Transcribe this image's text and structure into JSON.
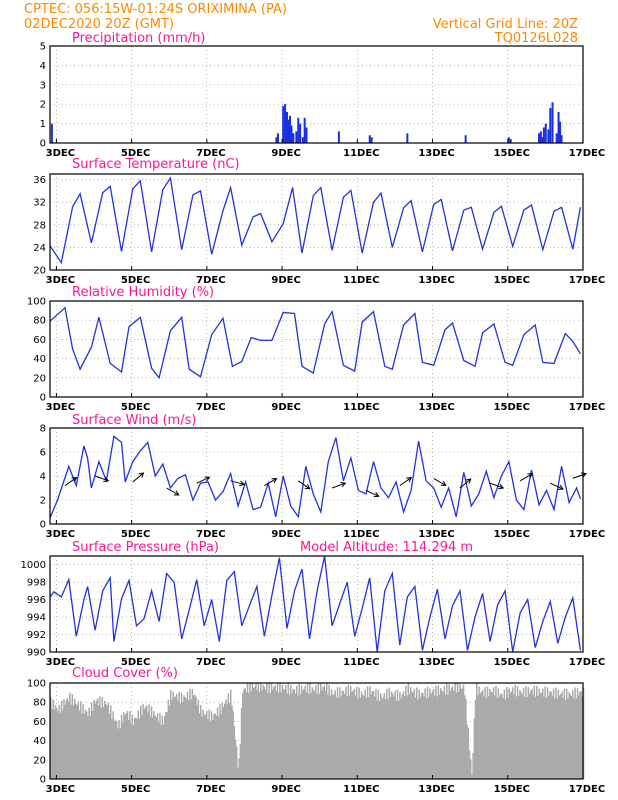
{
  "header": {
    "line1": "CPTEC:   056:15W-01:24S   ORIXIMINA (PA)",
    "line2": "02DEC2020 20Z (GMT)",
    "right1": "Vertical Grid Line: 20Z",
    "right2": "TQ0126L028"
  },
  "colors": {
    "header": "#ff8800",
    "title": "#ff1493",
    "line": "#2233dd",
    "bar": "#1a2fe0",
    "cloud": "#aaaaaa",
    "grid": "#888888"
  },
  "x_tick_labels": [
    "3DEC",
    "5DEC",
    "7DEC",
    "9DEC",
    "11DEC",
    "13DEC",
    "15DEC",
    "17DEC"
  ],
  "chart_data": [
    {
      "type": "bar",
      "title": "Precipitation (mm/h)",
      "ylim": [
        0,
        5
      ],
      "yticks": [
        0,
        1,
        2,
        3,
        4,
        5
      ],
      "x_unit": "days since 02DEC2020 20Z",
      "x": [
        0.05,
        6.02,
        6.06,
        6.2,
        6.25,
        6.3,
        6.35,
        6.38,
        6.42,
        6.47,
        6.55,
        6.6,
        6.65,
        6.72,
        6.77,
        6.82,
        7.68,
        8.5,
        8.55,
        9.5,
        11.05,
        12.2,
        12.25,
        13.0,
        13.05,
        13.08,
        13.13,
        13.18,
        13.25,
        13.3,
        13.36,
        13.47,
        13.52,
        13.56,
        13.6
      ],
      "values": [
        1.0,
        0.3,
        0.5,
        1.9,
        2.0,
        1.6,
        1.2,
        1.4,
        0.9,
        0.5,
        0.6,
        1.3,
        1.0,
        0.3,
        1.3,
        0.8,
        0.6,
        0.4,
        0.3,
        0.5,
        0.4,
        0.3,
        0.2,
        0.5,
        0.6,
        0.3,
        0.8,
        1.0,
        0.7,
        1.8,
        2.1,
        0.5,
        1.6,
        1.1,
        0.4
      ]
    },
    {
      "type": "line",
      "title": "Surface Temperature (nC)",
      "ylim": [
        20,
        37
      ],
      "yticks": [
        20,
        24,
        28,
        32,
        36
      ],
      "x_unit": "days since 02DEC2020 20Z",
      "x": [
        0,
        0.3,
        0.6,
        0.8,
        1.1,
        1.4,
        1.6,
        1.9,
        2.2,
        2.4,
        2.7,
        3.0,
        3.2,
        3.5,
        3.8,
        4.0,
        4.3,
        4.6,
        4.8,
        5.1,
        5.4,
        5.6,
        5.9,
        6.2,
        6.35,
        6.45,
        6.7,
        7.0,
        7.2,
        7.5,
        7.8,
        8.0,
        8.3,
        8.6,
        8.8,
        9.1,
        9.4,
        9.6,
        9.9,
        10.2,
        10.4,
        10.7,
        11.0,
        11.2,
        11.5,
        11.8,
        12.0,
        12.3,
        12.6,
        12.8,
        13.1,
        13.4,
        13.6,
        13.9,
        14.1
      ],
      "values": [
        24.3,
        21.3,
        31.2,
        33.5,
        24.8,
        33.7,
        34.8,
        23.3,
        34.4,
        35.8,
        23.2,
        34.2,
        36.3,
        23.6,
        33.3,
        34.0,
        22.8,
        30.5,
        34.6,
        24.4,
        29.4,
        30.0,
        25.0,
        28.2,
        32.1,
        34.6,
        23.0,
        33.2,
        34.6,
        23.5,
        32.9,
        34.1,
        23.0,
        32.0,
        33.6,
        24.0,
        31.0,
        32.3,
        23.2,
        31.6,
        32.5,
        23.4,
        30.6,
        31.1,
        23.7,
        30.2,
        31.3,
        24.2,
        30.6,
        31.5,
        23.6,
        30.4,
        31.1,
        23.7,
        31.1
      ]
    },
    {
      "type": "line",
      "title": "Relative Humidity (%)",
      "ylim": [
        0,
        100
      ],
      "yticks": [
        0,
        20,
        40,
        60,
        80,
        100
      ],
      "x_unit": "days since 02DEC2020 20Z",
      "x": [
        0,
        0.4,
        0.6,
        0.8,
        1.1,
        1.3,
        1.6,
        1.9,
        2.1,
        2.4,
        2.7,
        2.9,
        3.2,
        3.5,
        3.7,
        4.0,
        4.3,
        4.6,
        4.85,
        5.1,
        5.35,
        5.6,
        5.9,
        6.2,
        6.5,
        6.7,
        7.0,
        7.3,
        7.5,
        7.8,
        8.1,
        8.3,
        8.6,
        8.9,
        9.1,
        9.4,
        9.7,
        9.9,
        10.2,
        10.5,
        10.7,
        11.0,
        11.3,
        11.5,
        11.8,
        12.1,
        12.3,
        12.6,
        12.9,
        13.1,
        13.4,
        13.7,
        13.9,
        14.1
      ],
      "values": [
        79,
        93,
        50,
        29,
        52,
        83,
        35,
        26,
        73,
        83,
        30,
        20,
        69,
        83,
        29,
        21,
        65,
        82,
        32,
        37,
        62,
        59,
        59,
        88,
        87,
        32,
        25,
        76,
        89,
        33,
        27,
        78,
        89,
        32,
        29,
        75,
        87,
        36,
        33,
        70,
        77,
        38,
        32,
        67,
        76,
        36,
        33,
        65,
        75,
        36,
        35,
        66,
        58,
        45
      ]
    },
    {
      "type": "line",
      "title": "Surface Wind (m/s)",
      "ylim": [
        0,
        8
      ],
      "yticks": [
        0,
        2,
        4,
        6,
        8
      ],
      "x_unit": "days since 02DEC2020 20Z",
      "x": [
        0,
        0.2,
        0.5,
        0.7,
        0.9,
        1.0,
        1.1,
        1.3,
        1.5,
        1.7,
        1.9,
        2.0,
        2.2,
        2.4,
        2.6,
        2.8,
        3.0,
        3.2,
        3.4,
        3.6,
        3.8,
        4.0,
        4.2,
        4.4,
        4.6,
        4.8,
        5.0,
        5.2,
        5.4,
        5.6,
        5.8,
        6.0,
        6.2,
        6.4,
        6.6,
        6.8,
        7.0,
        7.2,
        7.4,
        7.6,
        7.8,
        8.0,
        8.2,
        8.4,
        8.6,
        8.8,
        9.0,
        9.2,
        9.4,
        9.6,
        9.8,
        10.0,
        10.2,
        10.4,
        10.6,
        10.8,
        11.0,
        11.2,
        11.4,
        11.6,
        11.8,
        12.0,
        12.2,
        12.4,
        12.6,
        12.8,
        13.0,
        13.2,
        13.4,
        13.6,
        13.8,
        14.0,
        14.1
      ],
      "values": [
        0.5,
        2.0,
        4.8,
        3.2,
        6.5,
        5.5,
        3.0,
        5.2,
        3.6,
        7.3,
        6.8,
        3.5,
        5.2,
        6.1,
        6.8,
        4.0,
        5.0,
        3.0,
        3.8,
        4.1,
        2.0,
        3.4,
        3.5,
        2.0,
        2.7,
        4.2,
        1.5,
        3.5,
        1.2,
        1.4,
        3.4,
        0.6,
        4.0,
        1.5,
        0.6,
        4.8,
        2.5,
        1.0,
        5.2,
        7.2,
        3.6,
        5.5,
        2.8,
        2.5,
        5.2,
        3.0,
        2.2,
        3.5,
        1.0,
        2.8,
        6.9,
        3.6,
        3.0,
        1.4,
        3.0,
        0.6,
        4.3,
        1.5,
        2.5,
        4.4,
        2.2,
        4.0,
        5.2,
        2.0,
        1.2,
        4.5,
        1.6,
        2.8,
        1.2,
        4.8,
        1.8,
        3.0,
        2.1
      ]
    },
    {
      "type": "line",
      "title": "Surface Pressure (hPa)",
      "annotation": "Model Altitude: 114.294 m",
      "ylim": [
        990,
        1001
      ],
      "yticks": [
        990,
        992,
        994,
        996,
        998,
        1000
      ],
      "x_unit": "days since 02DEC2020 20Z",
      "x": [
        0,
        0.1,
        0.3,
        0.5,
        0.7,
        0.9,
        1.0,
        1.2,
        1.4,
        1.6,
        1.7,
        1.9,
        2.1,
        2.3,
        2.5,
        2.7,
        2.9,
        3.1,
        3.3,
        3.5,
        3.7,
        3.9,
        4.1,
        4.3,
        4.5,
        4.7,
        4.9,
        5.1,
        5.3,
        5.5,
        5.7,
        5.9,
        6.1,
        6.3,
        6.5,
        6.7,
        6.9,
        7.1,
        7.3,
        7.5,
        7.7,
        7.9,
        8.1,
        8.3,
        8.5,
        8.7,
        8.9,
        9.1,
        9.3,
        9.5,
        9.7,
        9.9,
        10.1,
        10.3,
        10.5,
        10.7,
        10.9,
        11.1,
        11.3,
        11.5,
        11.7,
        11.9,
        12.1,
        12.3,
        12.5,
        12.7,
        12.9,
        13.1,
        13.3,
        13.5,
        13.7,
        13.9,
        14.1
      ],
      "values": [
        996.3,
        996.9,
        996.3,
        998.3,
        991.8,
        996.0,
        997.5,
        992.5,
        997.0,
        998.5,
        991.2,
        996.1,
        998.2,
        993.0,
        993.8,
        997.0,
        993.5,
        999.0,
        998.0,
        991.5,
        994.8,
        998.3,
        993.0,
        996.0,
        991.2,
        998.2,
        999.2,
        993.0,
        995.3,
        997.5,
        991.8,
        996.5,
        1000.8,
        992.7,
        997.0,
        999.5,
        991.5,
        997.0,
        1001.0,
        993.0,
        995.5,
        998.0,
        991.8,
        995.0,
        998.5,
        990.0,
        997.0,
        999.0,
        990.8,
        996.3,
        997.5,
        990.2,
        994.0,
        997.2,
        991.5,
        995.3,
        997.0,
        990.2,
        994.0,
        996.7,
        991.2,
        995.4,
        997.0,
        990.0,
        994.5,
        996.0,
        990.5,
        993.5,
        995.8,
        991.0,
        994.0,
        996.2,
        990.2
      ]
    },
    {
      "type": "bar",
      "title": "Cloud Cover (%)",
      "ylim": [
        0,
        100
      ],
      "yticks": [
        0,
        20,
        40,
        60,
        80,
        100
      ],
      "x_unit": "days since 02DEC2020 20Z",
      "x": [
        0,
        0.2,
        0.5,
        0.8,
        1.0,
        1.2,
        1.5,
        1.8,
        2.0,
        2.2,
        2.5,
        2.8,
        3.0,
        3.2,
        3.5,
        3.8,
        4.0,
        4.3,
        4.5,
        4.8,
        5.0,
        5.1,
        5.3,
        5.5,
        5.8,
        6.0,
        6.3,
        6.5,
        6.8,
        7.0,
        7.3,
        7.5,
        7.8,
        8.0,
        8.3,
        8.5,
        8.8,
        9.0,
        9.3,
        9.5,
        9.8,
        10.0,
        10.3,
        10.5,
        10.8,
        11.0,
        11.2,
        11.3,
        11.5,
        11.8,
        12.0,
        12.3,
        12.5,
        12.8,
        13.0,
        13.3,
        13.5,
        13.8,
        14.0
      ],
      "values": [
        80,
        72,
        85,
        75,
        68,
        82,
        78,
        55,
        70,
        60,
        76,
        66,
        60,
        88,
        84,
        90,
        70,
        65,
        72,
        88,
        8,
        92,
        96,
        97,
        95,
        96,
        94,
        92,
        95,
        93,
        96,
        89,
        91,
        93,
        88,
        92,
        85,
        90,
        86,
        94,
        88,
        90,
        92,
        93,
        96,
        95,
        3,
        94,
        90,
        92,
        87,
        93,
        90,
        92,
        91,
        90,
        89,
        88,
        90
      ]
    }
  ],
  "panel_titles": {
    "precip": "Precipitation (mm/h)",
    "temp": "Surface Temperature (nC)",
    "rh": "Relative Humidity (%)",
    "wind": "Surface Wind (m/s)",
    "pres": "Surface Pressure (hPa)",
    "pres_annot": "Model Altitude: 114.294 m",
    "cloud": "Cloud Cover (%)"
  }
}
